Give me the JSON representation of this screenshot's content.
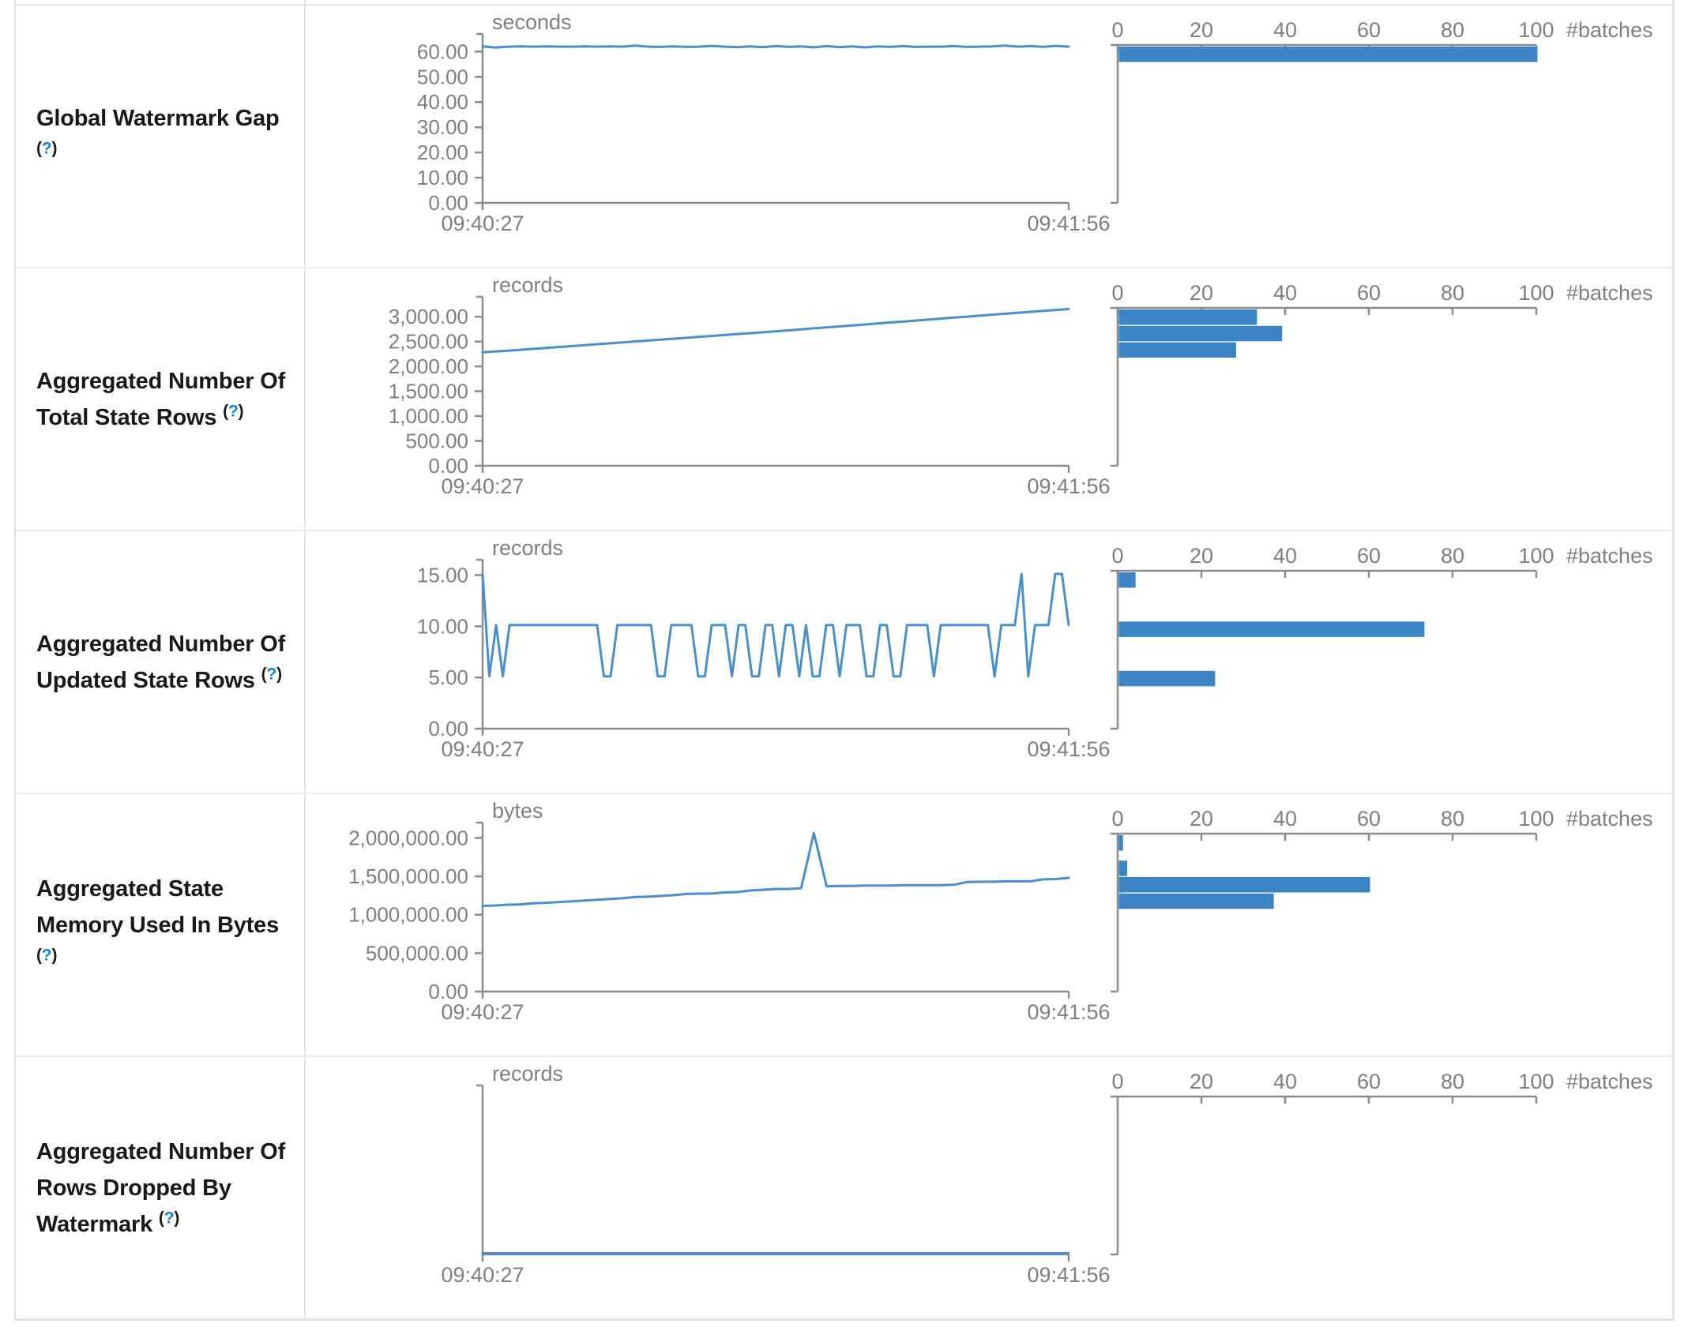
{
  "help": {
    "open": "(",
    "mark": "?",
    "close": ")"
  },
  "colors": {
    "bar": "#3B85C6",
    "line": "#4890CD",
    "axis": "#8B8B8B",
    "tick_text": "#7F7F7F",
    "label_text": "#17191D",
    "help_link": "#0C83D2",
    "border": "#E3E7EC"
  },
  "histogram_axis": {
    "ticks": [
      "0",
      "20",
      "40",
      "60",
      "80",
      "100"
    ],
    "max": 100,
    "label": "#batches"
  },
  "chart_data": [
    {
      "label": "Global Watermark Gap",
      "timeline": {
        "type": "line",
        "unit": "seconds",
        "x_start": "09:40:27",
        "x_end": "09:41:56",
        "ymax": 67,
        "yticks": [
          {
            "label": "60.00",
            "value": 60
          },
          {
            "label": "50.00",
            "value": 50
          },
          {
            "label": "40.00",
            "value": 40
          },
          {
            "label": "30.00",
            "value": 30
          },
          {
            "label": "20.00",
            "value": 20
          },
          {
            "label": "10.00",
            "value": 10
          },
          {
            "label": "0.00",
            "value": 0
          }
        ],
        "values": [
          61.6,
          61.1,
          61.5,
          61.6,
          61.5,
          61.6,
          61.5,
          61.5,
          61.6,
          61.5,
          61.6,
          61.5,
          61.9,
          61.5,
          61.4,
          61.6,
          61.4,
          61.5,
          61.8,
          61.5,
          61.3,
          61.6,
          61.3,
          61.7,
          61.4,
          61.6,
          61.2,
          61.7,
          61.3,
          61.6,
          61.2,
          61.6,
          61.4,
          61.7,
          61.4,
          61.5,
          61.5,
          61.7,
          61.4,
          61.5,
          61.6,
          61.9,
          61.5,
          61.7,
          61.4,
          61.8,
          61.5
        ]
      },
      "histogram": {
        "type": "bar",
        "bars": [
          {
            "count": 100,
            "slot": 0
          }
        ]
      }
    },
    {
      "label": "Aggregated Number Of Total State Rows",
      "timeline": {
        "type": "line",
        "unit": "records",
        "x_start": "09:40:27",
        "x_end": "09:41:56",
        "ymax": 3400,
        "yticks": [
          {
            "label": "3,000.00",
            "value": 3000
          },
          {
            "label": "2,500.00",
            "value": 2500
          },
          {
            "label": "2,000.00",
            "value": 2000
          },
          {
            "label": "1,500.00",
            "value": 1500
          },
          {
            "label": "1,000.00",
            "value": 1000
          },
          {
            "label": "500.00",
            "value": 500
          },
          {
            "label": "0.00",
            "value": 0
          }
        ],
        "values": [
          2260,
          2300,
          2345,
          2390,
          2435,
          2480,
          2525,
          2570,
          2615,
          2660,
          2705,
          2755,
          2800,
          2850,
          2895,
          2945,
          2990,
          3040,
          3085,
          3130
        ]
      },
      "histogram": {
        "type": "bar",
        "bars": [
          {
            "count": 33,
            "slot": 0
          },
          {
            "count": 39,
            "slot": 1
          },
          {
            "count": 28,
            "slot": 2
          }
        ]
      }
    },
    {
      "label": "Aggregated Number Of Updated State Rows",
      "timeline": {
        "type": "line",
        "unit": "records",
        "x_start": "09:40:27",
        "x_end": "09:41:56",
        "ymax": 16.5,
        "yticks": [
          {
            "label": "15.00",
            "value": 15
          },
          {
            "label": "10.00",
            "value": 10
          },
          {
            "label": "5.00",
            "value": 5
          },
          {
            "label": "0.00",
            "value": 0
          }
        ],
        "values": [
          15,
          5,
          10,
          5,
          10,
          10,
          10,
          10,
          10,
          10,
          10,
          10,
          10,
          10,
          10,
          10,
          10,
          10,
          5,
          5,
          10,
          10,
          10,
          10,
          10,
          10,
          5,
          5,
          10,
          10,
          10,
          10,
          5,
          5,
          10,
          10,
          10,
          5,
          10,
          10,
          5,
          5,
          10,
          10,
          5,
          10,
          10,
          5,
          10,
          5,
          5,
          10,
          10,
          5,
          10,
          10,
          10,
          5,
          5,
          10,
          10,
          5,
          5,
          10,
          10,
          10,
          10,
          5,
          10,
          10,
          10,
          10,
          10,
          10,
          10,
          10,
          5,
          10,
          10,
          10,
          15,
          5,
          10,
          10,
          10,
          15,
          15,
          10
        ]
      },
      "histogram": {
        "type": "bar",
        "bars": [
          {
            "count": 4,
            "slot": 0
          },
          {
            "count": 73,
            "slot": 3
          },
          {
            "count": 23,
            "slot": 6
          }
        ]
      }
    },
    {
      "label": "Aggregated State Memory Used In Bytes",
      "timeline": {
        "type": "line",
        "unit": "bytes",
        "x_start": "09:40:27",
        "x_end": "09:41:56",
        "ymax": 2200000,
        "yticks": [
          {
            "label": "2,000,000.00",
            "value": 2000000
          },
          {
            "label": "1,500,000.00",
            "value": 1500000
          },
          {
            "label": "1,000,000.00",
            "value": 1000000
          },
          {
            "label": "500,000.00",
            "value": 500000
          },
          {
            "label": "0.00",
            "value": 0
          }
        ],
        "values": [
          1100000,
          1105000,
          1115000,
          1120000,
          1135000,
          1140000,
          1150000,
          1160000,
          1170000,
          1180000,
          1190000,
          1200000,
          1215000,
          1220000,
          1230000,
          1240000,
          1255000,
          1260000,
          1260000,
          1275000,
          1280000,
          1300000,
          1310000,
          1320000,
          1320000,
          1330000,
          2050000,
          1355000,
          1360000,
          1360000,
          1365000,
          1365000,
          1365000,
          1370000,
          1370000,
          1370000,
          1370000,
          1375000,
          1410000,
          1415000,
          1415000,
          1420000,
          1420000,
          1420000,
          1445000,
          1450000,
          1465000
        ]
      },
      "histogram": {
        "type": "bar",
        "bars": [
          {
            "count": 1,
            "slot": 0
          },
          {
            "count": 2,
            "slot": 1.55
          },
          {
            "count": 60,
            "slot": 2.55
          },
          {
            "count": 37,
            "slot": 3.55
          }
        ]
      }
    },
    {
      "label": "Aggregated Number Of Rows Dropped By Watermark",
      "timeline": {
        "type": "line",
        "unit": "records",
        "x_start": "09:40:27",
        "x_end": "09:41:56",
        "ymax": 1,
        "yticks": [],
        "values": [
          0,
          0,
          0,
          0,
          0,
          0,
          0,
          0,
          0,
          0,
          0,
          0
        ]
      },
      "histogram": {
        "type": "bar",
        "bars": []
      }
    }
  ]
}
